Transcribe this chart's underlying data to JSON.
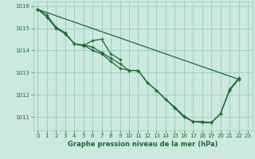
{
  "background_color": "#cce8df",
  "grid_color": "#99ccbb",
  "line_color": "#1a6b30",
  "title": "Graphe pression niveau de la mer (hPa)",
  "xlim": [
    -0.5,
    23.5
  ],
  "ylim": [
    1010.4,
    1016.2
  ],
  "yticks": [
    1011,
    1012,
    1013,
    1014,
    1015,
    1016
  ],
  "xticks": [
    0,
    1,
    2,
    3,
    4,
    5,
    6,
    7,
    8,
    9,
    10,
    11,
    12,
    13,
    14,
    15,
    16,
    17,
    18,
    19,
    20,
    21,
    22,
    23
  ],
  "series1": [
    1015.85,
    1015.5,
    1015.0,
    1014.75,
    1014.3,
    1014.25,
    1014.0,
    1013.85,
    1013.5,
    1013.2,
    1013.1,
    1013.1,
    1012.55,
    1012.2,
    1011.8,
    1011.4,
    1011.0,
    1010.8,
    1010.75,
    1010.75,
    1011.15,
    1012.2,
    1012.7,
    null
  ],
  "series2_x": [
    0,
    22
  ],
  "series2_y": [
    1015.85,
    1012.7
  ],
  "series3": [
    null,
    null,
    null,
    null,
    null,
    1014.25,
    1014.15,
    1013.9,
    1013.65,
    1013.4,
    1013.1,
    1013.1,
    1012.55,
    1012.2,
    1011.8,
    1011.45,
    1011.05,
    1010.8,
    1010.8,
    1010.75,
    1011.15,
    1012.25,
    1012.75,
    null
  ],
  "series4": [
    1015.85,
    1015.6,
    1015.05,
    1014.8,
    1014.3,
    1014.2,
    1014.45,
    1014.5,
    1013.85,
    1013.6,
    null,
    null,
    null,
    null,
    null,
    null,
    null,
    null,
    null,
    null,
    null,
    null,
    null,
    null
  ]
}
